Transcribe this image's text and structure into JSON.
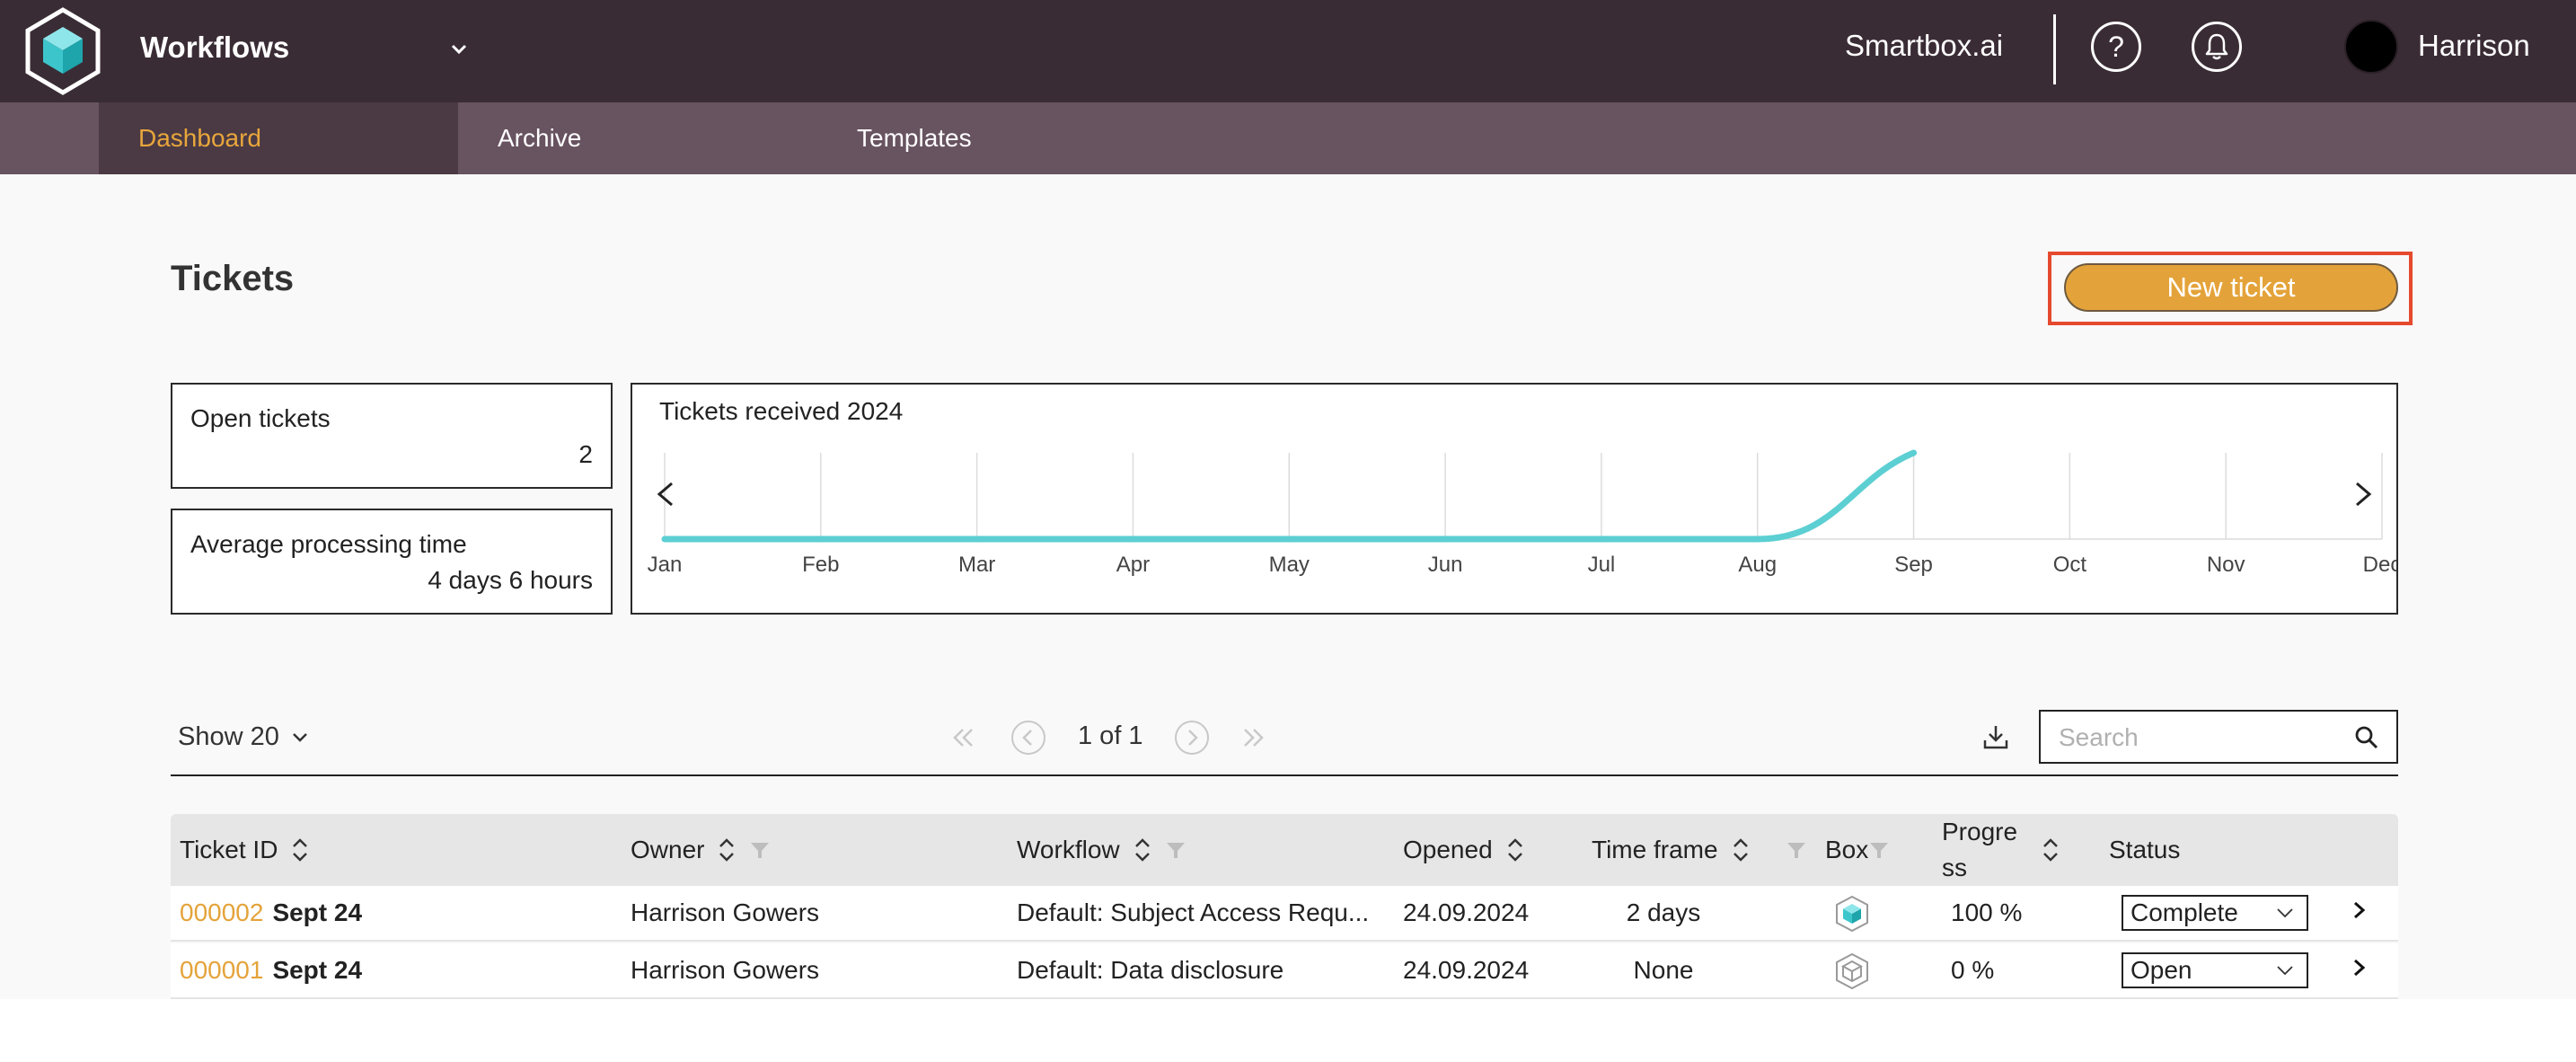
{
  "header": {
    "workspace_title": "Workflows",
    "brand": "Smartbox.ai",
    "help_glyph": "?",
    "user_name": "Harrison",
    "icons": [
      "cube-logo-icon",
      "chevron-down-icon",
      "help-icon",
      "bell-icon"
    ]
  },
  "nav": {
    "tabs": [
      {
        "label": "Dashboard",
        "active": true
      },
      {
        "label": "Archive",
        "active": false
      },
      {
        "label": "Templates",
        "active": false
      }
    ]
  },
  "page": {
    "title": "Tickets",
    "new_ticket_label": "New ticket"
  },
  "stats": {
    "open_label": "Open tickets",
    "open_value": "2",
    "avg_label": "Average processing time",
    "avg_value": "4 days 6 hours"
  },
  "chart_data": {
    "type": "line",
    "title": "Tickets received 2024",
    "categories": [
      "Jan",
      "Feb",
      "Mar",
      "Apr",
      "May",
      "Jun",
      "Jul",
      "Aug",
      "Sep",
      "Oct",
      "Nov",
      "Dec"
    ],
    "series": [
      {
        "values": [
          0,
          0,
          0,
          0,
          0,
          0,
          0,
          0,
          2,
          null,
          null,
          null
        ],
        "color": "#5ccfd3"
      }
    ],
    "ylim": [
      0,
      2
    ],
    "grid": true,
    "legend": "none"
  },
  "toolbar": {
    "show_label": "Show 20",
    "page_indicator": "1 of 1",
    "search_placeholder": "Search",
    "search_value": ""
  },
  "table": {
    "columns": [
      "Ticket ID",
      "Owner",
      "Workflow",
      "Opened",
      "Time frame",
      "Box",
      "Progre ss",
      "Status"
    ],
    "rows": [
      {
        "id": "000002",
        "date": "Sept 24",
        "owner": "Harrison Gowers",
        "workflow": "Default: Subject Access Requ...",
        "opened": "24.09.2024",
        "time_frame": "2 days",
        "box_icon": "cube-color-icon",
        "progress": "100 %",
        "status": "Complete"
      },
      {
        "id": "000001",
        "date": "Sept 24",
        "owner": "Harrison Gowers",
        "workflow": "Default: Data disclosure",
        "opened": "24.09.2024",
        "time_frame": "None",
        "box_icon": "cube-outline-icon",
        "progress": "0 %",
        "status": "Open"
      }
    ]
  },
  "colors": {
    "topbar": "#3a2c35",
    "nav": "#685360",
    "nav_active": "#4b3a44",
    "accent": "#e4a33a",
    "highlight": "#e64a2e",
    "chart_line": "#5ccfd3"
  }
}
